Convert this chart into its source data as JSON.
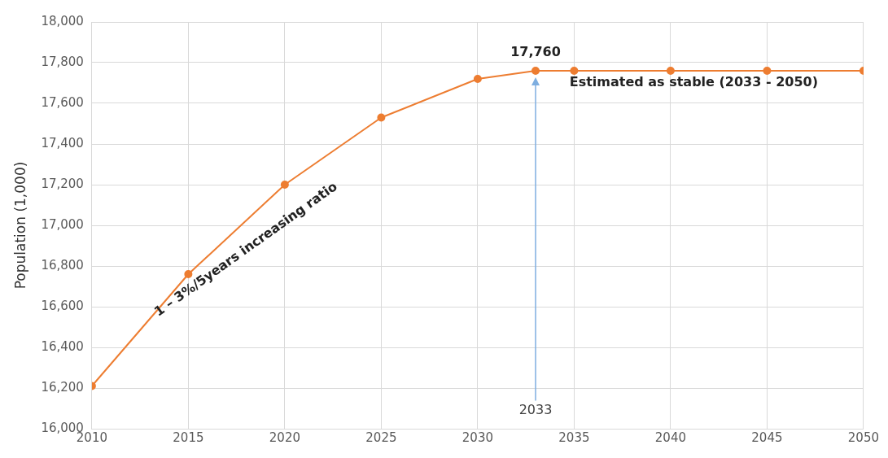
{
  "chart_data": {
    "type": "line",
    "ylabel": "Population (1,000)",
    "x": [
      2010,
      2015,
      2020,
      2025,
      2030,
      2033,
      2035,
      2040,
      2045,
      2050
    ],
    "series": [
      {
        "color": "#ed7d31",
        "values": [
          16210,
          16760,
          17200,
          17530,
          17720,
          17760,
          17760,
          17760,
          17760,
          17760
        ]
      }
    ],
    "xlim": [
      2010,
      2050
    ],
    "xticks": [
      2010,
      2015,
      2020,
      2025,
      2030,
      2035,
      2040,
      2045,
      2050
    ],
    "ylim": [
      16000,
      18000
    ],
    "yticks": [
      {
        "value": 16000,
        "label": "16,000"
      },
      {
        "value": 16200,
        "label": "16,200"
      },
      {
        "value": 16400,
        "label": "16,400"
      },
      {
        "value": 16600,
        "label": "16,600"
      },
      {
        "value": 16800,
        "label": "16,800"
      },
      {
        "value": 17000,
        "label": "17,000"
      },
      {
        "value": 17200,
        "label": "17,200"
      },
      {
        "value": 17400,
        "label": "17,400"
      },
      {
        "value": 17600,
        "label": "17,600"
      },
      {
        "value": 17800,
        "label": "17,800"
      },
      {
        "value": 18000,
        "label": "18,000"
      }
    ],
    "annotations": [
      "1 – 3%/5years increasing ratio",
      {
        "text": "17,760",
        "x": 2033,
        "y": 17760
      },
      "Estimated as stable (2033 - 2050)",
      "2033"
    ],
    "grid": true,
    "marker": "circle",
    "line_style": "solid",
    "legend": false
  }
}
